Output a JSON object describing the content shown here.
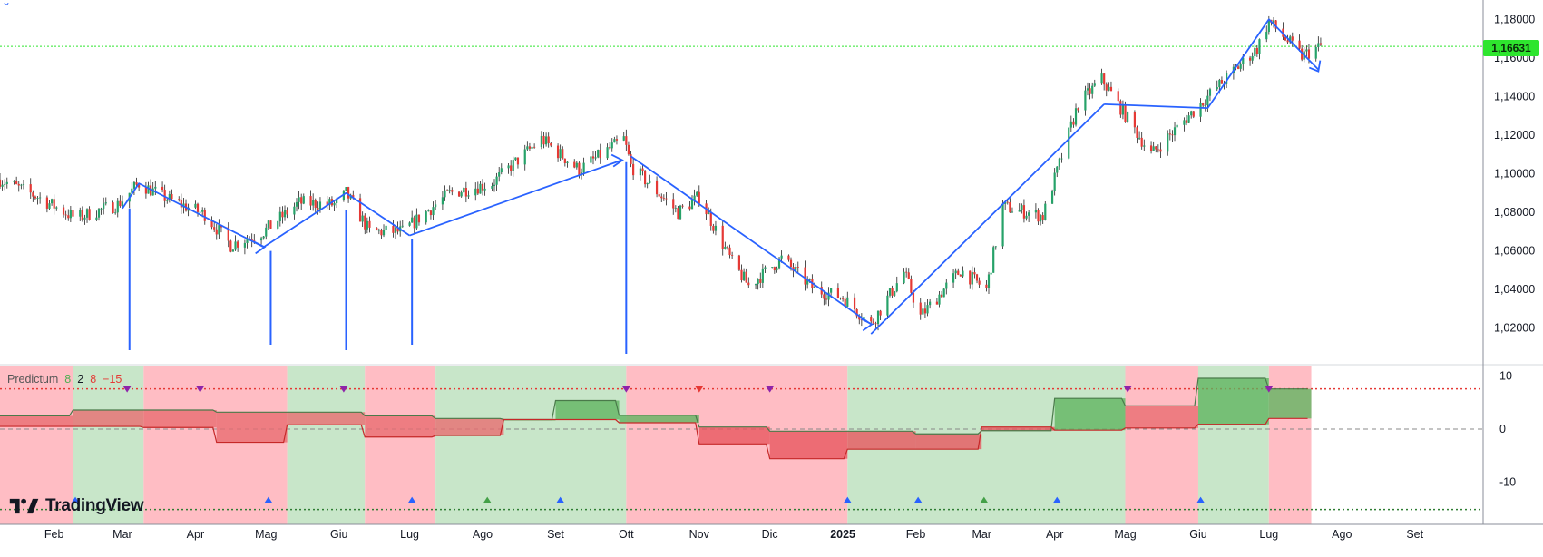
{
  "ticker_marker": "⌄",
  "watermark": {
    "text": "TradingView",
    "logo_icon": "tradingview-logo-icon"
  },
  "indicator": {
    "name": "Predictum",
    "params": [
      "8",
      "2",
      "8",
      "−15"
    ],
    "param_colors": [
      "#4caf50",
      "#131722",
      "#e53935",
      "#e53935"
    ],
    "y_ticks": [
      "10",
      "0",
      "−10"
    ]
  },
  "last_price": "1,16631",
  "colors": {
    "up_candle": "#26a269",
    "down_candle": "#e53935",
    "trend_lines": "#2962ff",
    "bull_zone": "#c8e6c9",
    "bear_zone": "#ffbdc4",
    "price_badge": "#2ee52e",
    "red_dotted": "#e53935",
    "green_dotted": "#2e7d32"
  },
  "chart_data": {
    "type": "candlestick",
    "title": "",
    "price_axis": {
      "ylim": [
        1.002,
        1.19
      ],
      "ticks": [
        "1,18000",
        "1,16000",
        "1,14000",
        "1,12000",
        "1,10000",
        "1,08000",
        "1,06000",
        "1,04000",
        "1,02000"
      ],
      "tick_values": [
        1.18,
        1.16,
        1.14,
        1.12,
        1.1,
        1.08,
        1.06,
        1.04,
        1.02
      ]
    },
    "time_axis": {
      "labels": [
        "Feb",
        "Mar",
        "Apr",
        "Mag",
        "Giu",
        "Lug",
        "Ago",
        "Set",
        "Ott",
        "Nov",
        "Dic",
        "2025",
        "Feb",
        "Mar",
        "Apr",
        "Mag",
        "Giu",
        "Lug",
        "Ago",
        "Set"
      ],
      "bold_label": "2025",
      "range": [
        "2024-01-09",
        "2025-09-30"
      ],
      "label_dates": [
        "2024-02-01",
        "2024-03-01",
        "2024-04-01",
        "2024-05-01",
        "2024-06-01",
        "2024-07-01",
        "2024-08-01",
        "2024-09-01",
        "2024-10-01",
        "2024-11-01",
        "2024-12-01",
        "2025-01-01",
        "2025-02-01",
        "2025-03-01",
        "2025-04-01",
        "2025-05-01",
        "2025-06-01",
        "2025-07-01",
        "2025-08-01",
        "2025-09-01"
      ]
    },
    "price_path": [
      [
        "2024-01-09",
        1.097
      ],
      [
        "2024-01-25",
        1.088
      ],
      [
        "2024-02-10",
        1.077
      ],
      [
        "2024-02-28",
        1.084
      ],
      [
        "2024-03-08",
        1.095
      ],
      [
        "2024-03-20",
        1.087
      ],
      [
        "2024-04-05",
        1.079
      ],
      [
        "2024-04-16",
        1.063
      ],
      [
        "2024-04-30",
        1.07
      ],
      [
        "2024-05-15",
        1.085
      ],
      [
        "2024-05-31",
        1.084
      ],
      [
        "2024-06-04",
        1.09
      ],
      [
        "2024-06-14",
        1.07
      ],
      [
        "2024-06-28",
        1.07
      ],
      [
        "2024-07-18",
        1.09
      ],
      [
        "2024-08-05",
        1.095
      ],
      [
        "2024-08-26",
        1.118
      ],
      [
        "2024-09-11",
        1.102
      ],
      [
        "2024-09-30",
        1.118
      ],
      [
        "2024-10-03",
        1.104
      ],
      [
        "2024-10-23",
        1.08
      ],
      [
        "2024-11-01",
        1.088
      ],
      [
        "2024-11-15",
        1.054
      ],
      [
        "2024-11-22",
        1.042
      ],
      [
        "2024-12-06",
        1.056
      ],
      [
        "2024-12-20",
        1.04
      ],
      [
        "2025-01-01",
        1.036
      ],
      [
        "2025-01-13",
        1.022
      ],
      [
        "2025-01-27",
        1.049
      ],
      [
        "2025-02-03",
        1.026
      ],
      [
        "2025-02-20",
        1.05
      ],
      [
        "2025-03-03",
        1.04
      ],
      [
        "2025-03-10",
        1.083
      ],
      [
        "2025-03-27",
        1.078
      ],
      [
        "2025-04-11",
        1.136
      ],
      [
        "2025-04-21",
        1.149
      ],
      [
        "2025-05-12",
        1.11
      ],
      [
        "2025-06-05",
        1.14
      ],
      [
        "2025-06-26",
        1.165
      ],
      [
        "2025-07-01",
        1.179
      ],
      [
        "2025-07-15",
        1.161
      ],
      [
        "2025-07-23",
        1.166
      ]
    ],
    "trend_lines": [
      [
        [
          "2024-03-01",
          1.082
        ],
        [
          "2024-03-08",
          1.095
        ],
        [
          "2024-04-30",
          1.062
        ]
      ],
      [
        [
          "2024-04-30",
          1.062
        ],
        [
          "2024-06-04",
          1.09
        ],
        [
          "2024-07-01",
          1.068
        ]
      ],
      [
        [
          "2024-07-01",
          1.068
        ],
        [
          "2024-09-29",
          1.107
        ]
      ],
      [
        [
          "2024-10-03",
          1.109
        ],
        [
          "2025-01-13",
          1.022
        ]
      ],
      [
        [
          "2025-01-13",
          1.017
        ],
        [
          "2025-04-22",
          1.136
        ]
      ],
      [
        [
          "2025-04-22",
          1.136
        ],
        [
          "2025-06-05",
          1.134
        ]
      ],
      [
        [
          "2025-06-05",
          1.134
        ],
        [
          "2025-07-01",
          1.18
        ],
        [
          "2025-07-22",
          1.154
        ]
      ]
    ],
    "trend_arrowheads": [
      {
        "date": "2024-04-30",
        "price": 1.062,
        "dir": "right"
      },
      {
        "date": "2024-09-29",
        "price": 1.107,
        "dir": "right"
      },
      {
        "date": "2025-01-13",
        "price": 1.022,
        "dir": "right"
      },
      {
        "date": "2025-07-22",
        "price": 1.154,
        "dir": "down"
      }
    ],
    "markers": [
      {
        "date": "2024-03-04",
        "from": 1.082
      },
      {
        "date": "2024-05-03",
        "from": 1.06
      },
      {
        "date": "2024-06-04",
        "from": 1.081
      },
      {
        "date": "2024-07-02",
        "from": 1.066
      },
      {
        "date": "2024-10-01",
        "from": 1.106
      }
    ],
    "indicator": {
      "ylim": [
        -18,
        12
      ],
      "levels": {
        "upper": 7.6,
        "lower": -15.2
      },
      "zones": [
        [
          "2024-01-09",
          "2024-02-09",
          "bear"
        ],
        [
          "2024-02-09",
          "2024-03-10",
          "bull"
        ],
        [
          "2024-03-10",
          "2024-05-10",
          "bear"
        ],
        [
          "2024-05-10",
          "2024-06-12",
          "bull"
        ],
        [
          "2024-06-12",
          "2024-07-12",
          "bear"
        ],
        [
          "2024-07-12",
          "2024-10-01",
          "bull"
        ],
        [
          "2024-10-01",
          "2025-01-03",
          "bear"
        ],
        [
          "2025-01-03",
          "2025-05-01",
          "bull"
        ],
        [
          "2025-05-01",
          "2025-06-01",
          "bear"
        ],
        [
          "2025-06-01",
          "2025-07-01",
          "bull"
        ],
        [
          "2025-07-01",
          "2025-07-19",
          "bear"
        ]
      ],
      "upper_line": [
        [
          "2024-01-09",
          2.5
        ],
        [
          "2024-02-09",
          3.6
        ],
        [
          "2024-03-10",
          3.6
        ],
        [
          "2024-04-10",
          3.2
        ],
        [
          "2024-05-10",
          3.2
        ],
        [
          "2024-06-12",
          2.5
        ],
        [
          "2024-07-12",
          2.0
        ],
        [
          "2024-08-10",
          1.8
        ],
        [
          "2024-09-01",
          5.4
        ],
        [
          "2024-09-28",
          2.6
        ],
        [
          "2024-11-01",
          0.4
        ],
        [
          "2024-12-01",
          -0.4
        ],
        [
          "2025-01-03",
          -0.4
        ],
        [
          "2025-02-01",
          -0.9
        ],
        [
          "2025-03-01",
          -0.3
        ],
        [
          "2025-04-01",
          5.8
        ],
        [
          "2025-05-01",
          4.4
        ],
        [
          "2025-06-01",
          9.6
        ],
        [
          "2025-07-01",
          7.6
        ]
      ],
      "lower_line": [
        [
          "2024-01-09",
          0.5
        ],
        [
          "2024-02-09",
          0.5
        ],
        [
          "2024-03-10",
          0.3
        ],
        [
          "2024-04-10",
          -2.5
        ],
        [
          "2024-05-10",
          0.8
        ],
        [
          "2024-06-12",
          -1.5
        ],
        [
          "2024-07-12",
          -1.2
        ],
        [
          "2024-08-10",
          1.8
        ],
        [
          "2024-09-01",
          1.8
        ],
        [
          "2024-09-28",
          1.2
        ],
        [
          "2024-11-01",
          -2.8
        ],
        [
          "2024-12-01",
          -5.6
        ],
        [
          "2025-01-03",
          -3.8
        ],
        [
          "2025-02-01",
          -3.8
        ],
        [
          "2025-03-01",
          0.4
        ],
        [
          "2025-04-01",
          -0.2
        ],
        [
          "2025-05-01",
          0.2
        ],
        [
          "2025-06-01",
          0.9
        ],
        [
          "2025-07-01",
          2.0
        ]
      ],
      "signals_top": [
        {
          "date": "2024-03-03",
          "color": "#8e24aa"
        },
        {
          "date": "2024-04-03",
          "color": "#8e24aa"
        },
        {
          "date": "2024-06-03",
          "color": "#8e24aa"
        },
        {
          "date": "2024-10-01",
          "color": "#8e24aa"
        },
        {
          "date": "2024-11-01",
          "color": "#e53935"
        },
        {
          "date": "2024-12-01",
          "color": "#8e24aa"
        },
        {
          "date": "2025-05-02",
          "color": "#8e24aa"
        },
        {
          "date": "2025-07-01",
          "color": "#8e24aa"
        }
      ],
      "signals_bottom": [
        {
          "date": "2024-02-10",
          "color": "#2962ff"
        },
        {
          "date": "2024-05-02",
          "color": "#2962ff"
        },
        {
          "date": "2024-07-02",
          "color": "#2962ff"
        },
        {
          "date": "2024-08-03",
          "color": "#43a047"
        },
        {
          "date": "2024-09-03",
          "color": "#2962ff"
        },
        {
          "date": "2025-01-03",
          "color": "#2962ff"
        },
        {
          "date": "2025-02-02",
          "color": "#2962ff"
        },
        {
          "date": "2025-03-02",
          "color": "#43a047"
        },
        {
          "date": "2025-04-02",
          "color": "#2962ff"
        },
        {
          "date": "2025-06-02",
          "color": "#2962ff"
        }
      ]
    }
  }
}
